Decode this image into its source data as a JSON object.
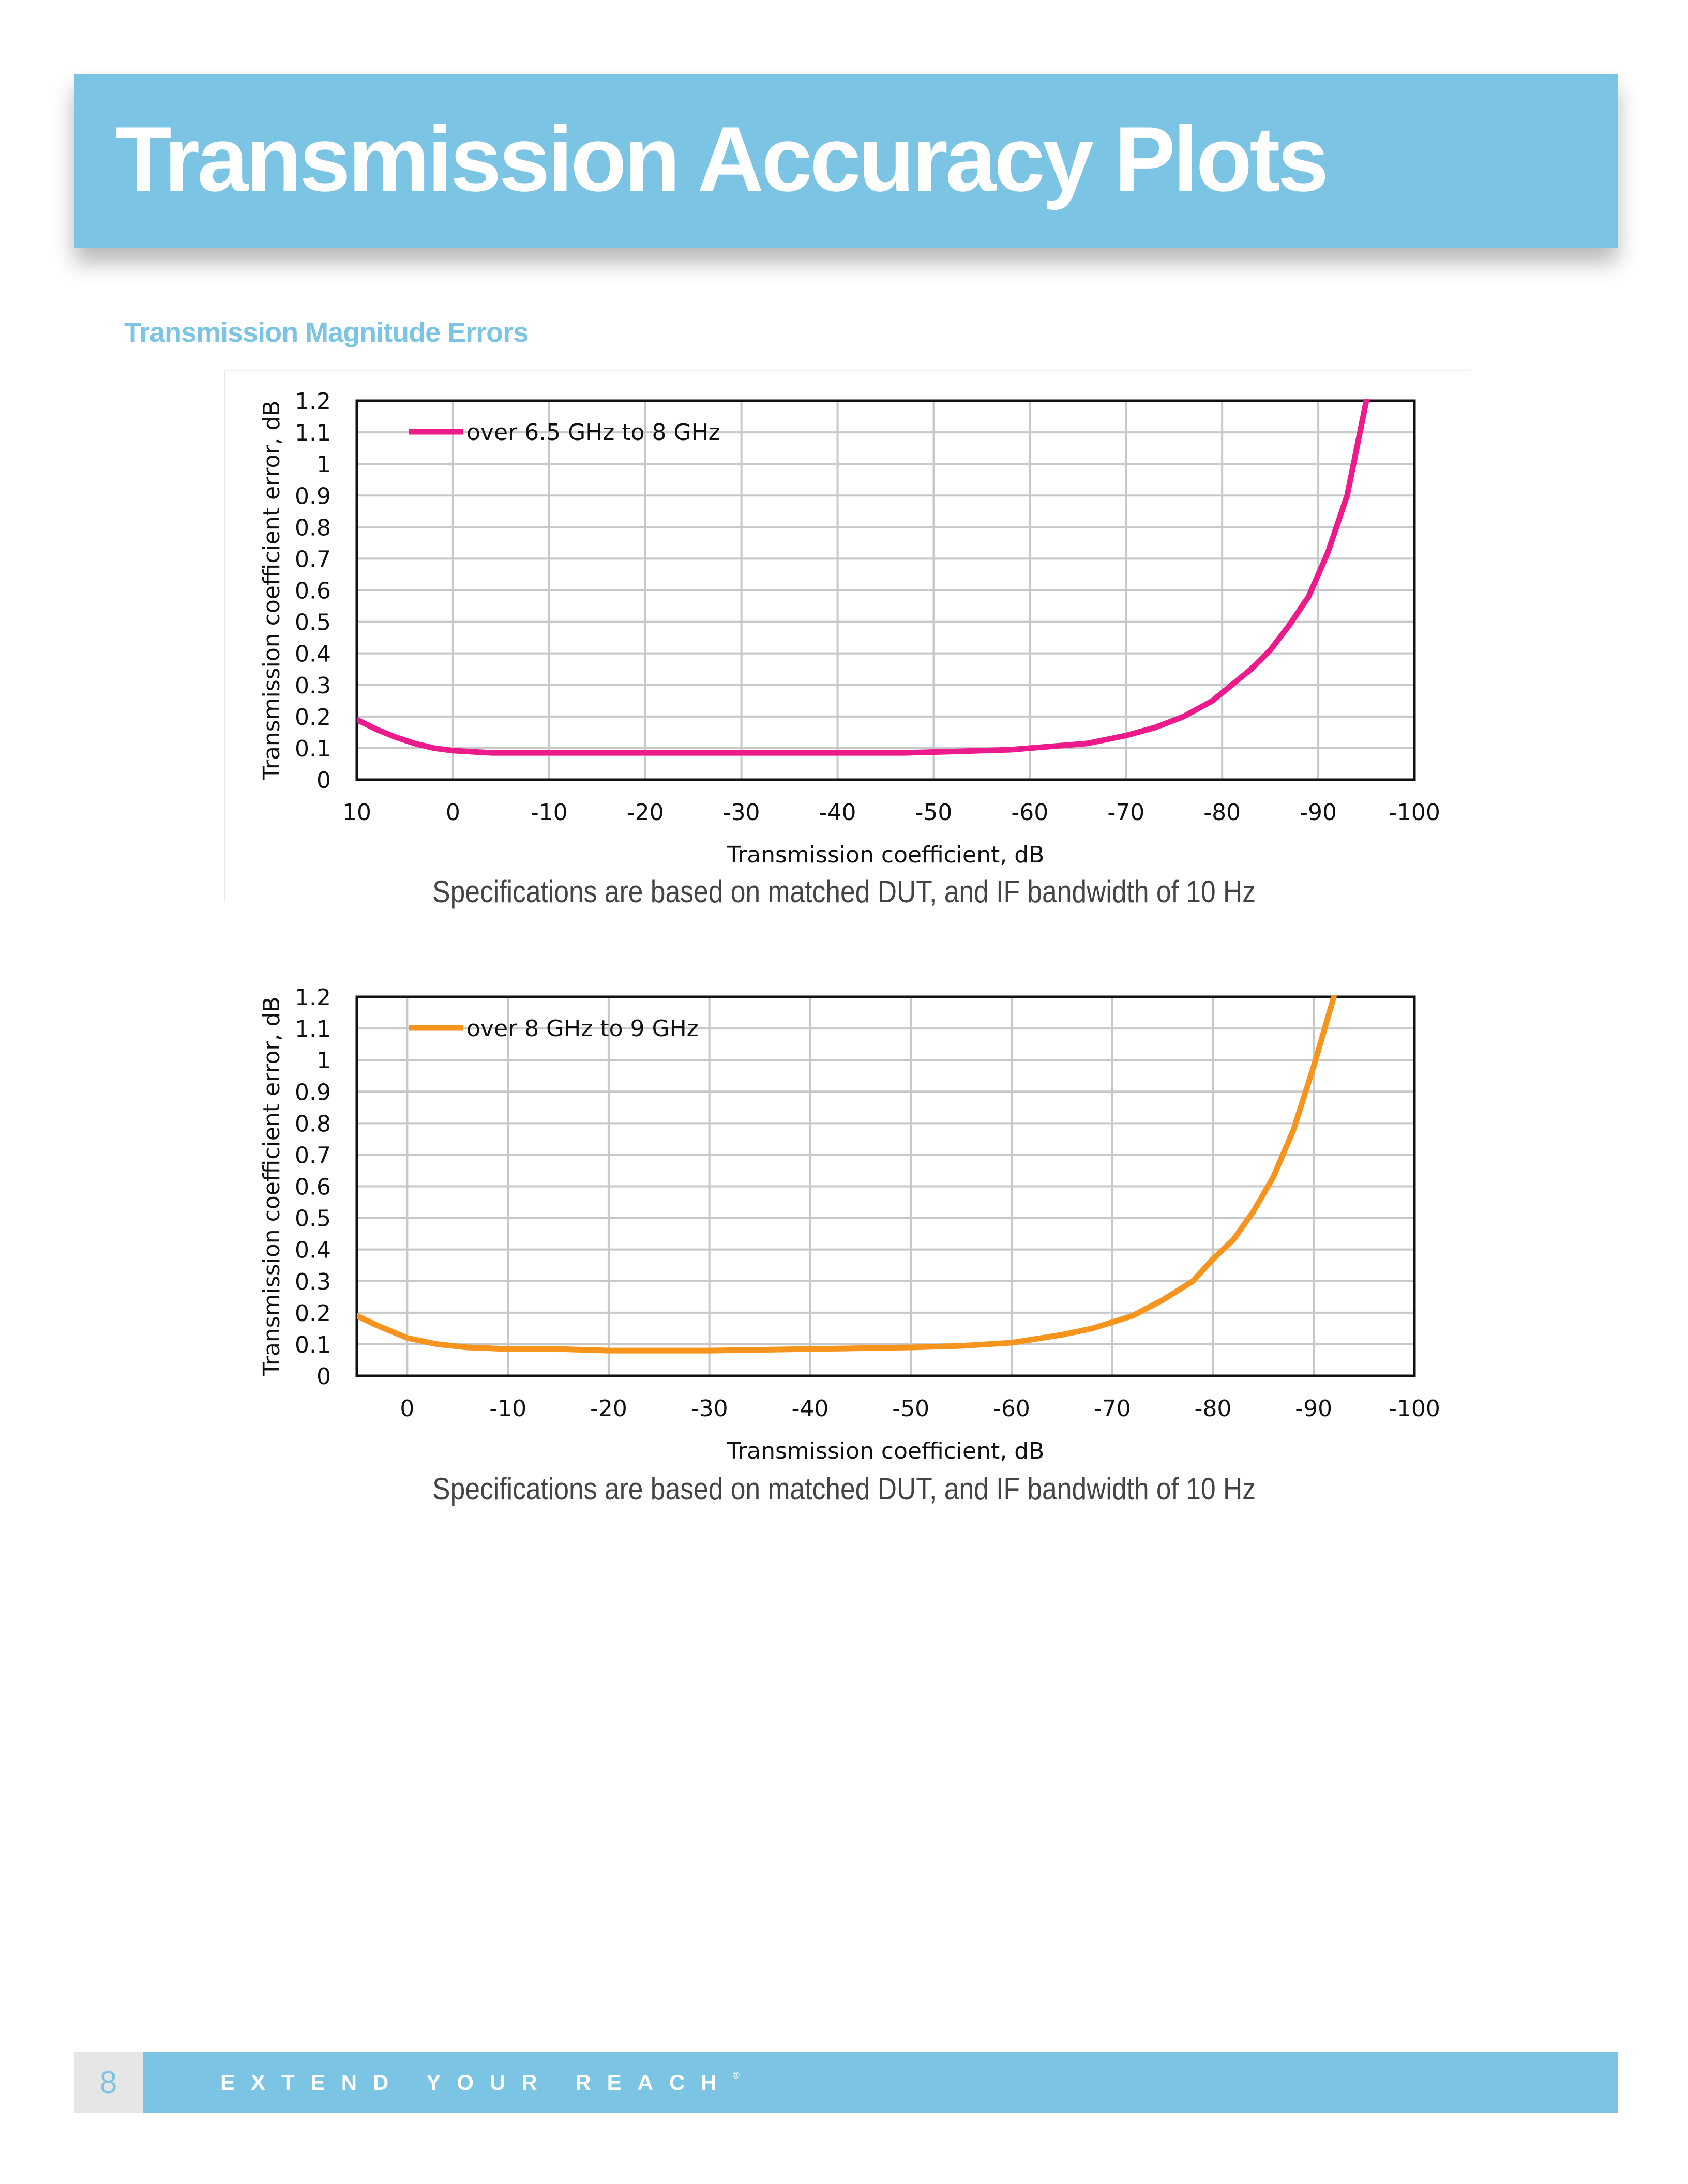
{
  "header": {
    "title": "Transmission Accuracy Plots"
  },
  "section": {
    "heading": "Transmission Magnitude Errors"
  },
  "footer": {
    "page_number": "8",
    "tagline": "EXTEND YOUR REACH",
    "registered_mark": "®"
  },
  "colors": {
    "banner": "#7cc4e4",
    "series_1": "#ec1a8a",
    "series_2": "#f7941d",
    "grid": "#c8c8c8"
  },
  "chart_data": [
    {
      "type": "line",
      "xlabel": "Transmission coefficient, dB",
      "ylabel": "Transmission coefficient error, dB",
      "xlim": [
        10,
        -100
      ],
      "ylim": [
        0,
        1.2
      ],
      "x_ticks": [
        "10",
        "0",
        "-10",
        "-20",
        "-30",
        "-40",
        "-50",
        "-60",
        "-70",
        "-80",
        "-90",
        "-100"
      ],
      "y_ticks": [
        "0",
        "0.1",
        "0.2",
        "0.3",
        "0.4",
        "0.5",
        "0.6",
        "0.7",
        "0.8",
        "0.9",
        "1",
        "1.1",
        "1.2"
      ],
      "grid": true,
      "legend_position": "top-left",
      "caption": "Specifications are based on matched DUT, and IF bandwidth of 10 Hz",
      "series": [
        {
          "name": "over 6.5 GHz to 8 GHz",
          "color": "#ec1a8a",
          "x": [
            10,
            8,
            6,
            4,
            2,
            0,
            -4,
            -10,
            -20,
            -30,
            -40,
            -47,
            -53,
            -58,
            -62,
            -66,
            -70,
            -73,
            -76,
            -79,
            -81,
            -83,
            -85,
            -87,
            -89,
            -91,
            -93,
            -95
          ],
          "y": [
            0.19,
            0.16,
            0.135,
            0.115,
            0.1,
            0.092,
            0.085,
            0.085,
            0.085,
            0.085,
            0.085,
            0.085,
            0.09,
            0.095,
            0.105,
            0.115,
            0.14,
            0.165,
            0.2,
            0.25,
            0.3,
            0.35,
            0.41,
            0.49,
            0.58,
            0.72,
            0.9,
            1.2
          ]
        }
      ]
    },
    {
      "type": "line",
      "xlabel": "Transmission coefficient, dB",
      "ylabel": "Transmission coefficient error, dB",
      "xlim": [
        5,
        -100
      ],
      "ylim": [
        0,
        1.2
      ],
      "x_ticks": [
        "0",
        "-10",
        "-20",
        "-30",
        "-40",
        "-50",
        "-60",
        "-70",
        "-80",
        "-90",
        "-100"
      ],
      "y_ticks": [
        "0",
        "0.1",
        "0.2",
        "0.3",
        "0.4",
        "0.5",
        "0.6",
        "0.7",
        "0.8",
        "0.9",
        "1",
        "1.1",
        "1.2"
      ],
      "grid": true,
      "legend_position": "top-left",
      "caption": "Specifications are based on matched DUT, and IF bandwidth of 10 Hz",
      "series": [
        {
          "name": "over 8 GHz to 9 GHz",
          "color": "#f7941d",
          "x": [
            5,
            3,
            0,
            -3,
            -6,
            -10,
            -15,
            -20,
            -25,
            -30,
            -40,
            -50,
            -55,
            -60,
            -65,
            -68,
            -72,
            -75,
            -78,
            -80,
            -82,
            -84,
            -86,
            -88,
            -90,
            -92
          ],
          "y": [
            0.19,
            0.16,
            0.12,
            0.1,
            0.09,
            0.085,
            0.085,
            0.08,
            0.08,
            0.08,
            0.085,
            0.09,
            0.095,
            0.105,
            0.13,
            0.15,
            0.19,
            0.24,
            0.3,
            0.37,
            0.43,
            0.52,
            0.63,
            0.78,
            0.98,
            1.2
          ]
        }
      ]
    }
  ]
}
